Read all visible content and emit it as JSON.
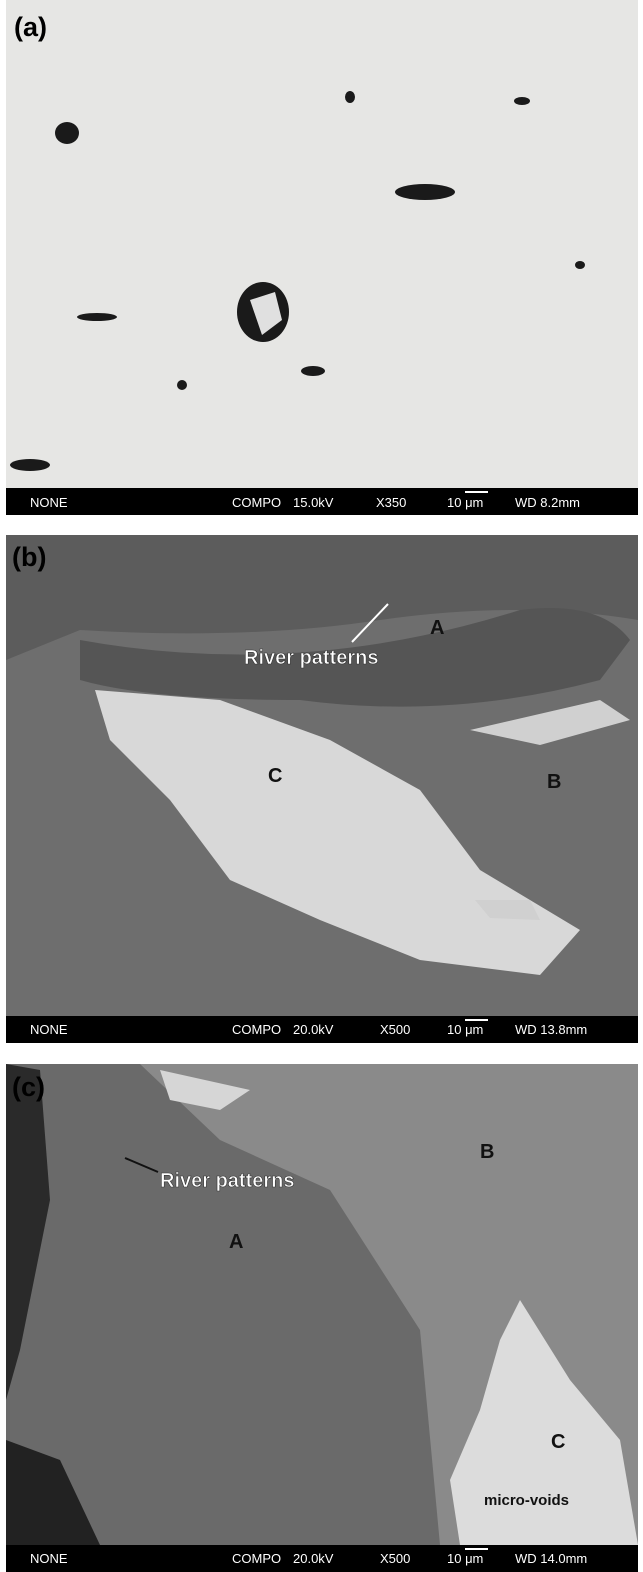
{
  "panels": [
    {
      "label": "(a)",
      "info": {
        "detector": "NONE",
        "mode": "COMPO",
        "voltage": "15.0kV",
        "magnification": "X350",
        "scale": "10 μm",
        "working_distance": "WD 8.2mm"
      }
    },
    {
      "label": "(b)",
      "info": {
        "detector": "NONE",
        "mode": "COMPO",
        "voltage": "20.0kV",
        "magnification": "X500",
        "scale": "10 μm",
        "working_distance": "WD 13.8mm"
      },
      "annotations": [
        "River patterns",
        "A",
        "C",
        "B"
      ]
    },
    {
      "label": "(c)",
      "info": {
        "detector": "NONE",
        "mode": "COMPO",
        "voltage": "20.0kV",
        "magnification": "X500",
        "scale": "10 μm",
        "working_distance": "WD 14.0mm"
      },
      "annotations": [
        "River patterns",
        "B",
        "A",
        "C",
        "micro-voids"
      ]
    }
  ]
}
